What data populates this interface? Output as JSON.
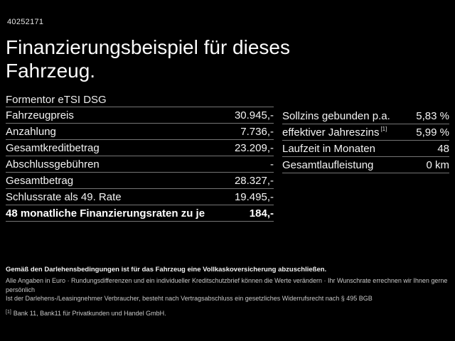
{
  "page": {
    "background_color": "#000000",
    "text_color": "#ffffff",
    "divider_color": "#757575"
  },
  "header": {
    "reference_number": "40252171",
    "title_line1": "Finanzierungsbeispiel für dieses",
    "title_line2": "Fahrzeug.",
    "model_name": "Formentor eTSI DSG"
  },
  "finance_table": {
    "rows": [
      {
        "label": "Fahrzeugpreis",
        "value": "30.945,-"
      },
      {
        "label": "Anzahlung",
        "value": "7.736,-"
      },
      {
        "label": "Gesamtkreditbetrag",
        "value": "23.209,-"
      },
      {
        "label": "Abschlussgebühren",
        "value": "-"
      },
      {
        "label": "Gesamtbetrag",
        "value": "28.327,-"
      },
      {
        "label": "Schlussrate als 49. Rate",
        "value": "19.495,-"
      },
      {
        "label": "48 monatliche Finanzierungsraten zu je",
        "value": "184,-"
      }
    ]
  },
  "conditions_table": {
    "rows": [
      {
        "label": "Sollzins gebunden p.a.",
        "superscript": "",
        "value": "5,83 %"
      },
      {
        "label": "effektiver Jahreszins",
        "superscript": "[1]",
        "value": "5,99 %"
      },
      {
        "label": "Laufzeit in Monaten",
        "superscript": "",
        "value": "48"
      },
      {
        "label": "Gesamtlaufleistung",
        "superscript": "",
        "value": "0 km"
      }
    ]
  },
  "footer": {
    "insurance_note": "Gemäß den Darlehensbedingungen ist für das Fahrzeug eine Vollkaskoversicherung abzuschließen.",
    "note_line1": "Alle Angaben in Euro · Rundungsdifferenzen und ein individueller Kreditschutzbrief können die Werte verändern · Ihr Wunschrate errechnen wir Ihnen gerne persönlich",
    "note_line2": "Ist der Darlehens-/Leasingnehmer Verbraucher, besteht nach Vertragsabschluss ein gesetzliches Widerrufsrecht nach § 495 BGB",
    "footnote_marker": "[1]",
    "footnote_text": "Bank 11, Bank11 für Privatkunden und Handel GmbH."
  }
}
